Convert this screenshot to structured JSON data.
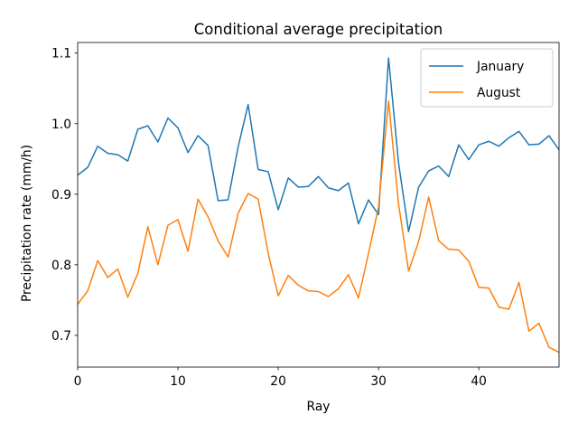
{
  "chart_data": {
    "type": "line",
    "title": "Conditional average precipitation",
    "xlabel": "Ray",
    "ylabel": "Precipitation rate (mm/h)",
    "xlim": [
      0,
      48
    ],
    "ylim": [
      0.655,
      1.115
    ],
    "xticks": [
      0,
      10,
      20,
      30,
      40
    ],
    "yticks": [
      0.7,
      0.8,
      0.9,
      1.0,
      1.1
    ],
    "ytick_labels": [
      "0.7",
      "0.8",
      "0.9",
      "1.0",
      "1.1"
    ],
    "legend_position": "upper right",
    "grid": false,
    "x": [
      0,
      1,
      2,
      3,
      4,
      5,
      6,
      7,
      8,
      9,
      10,
      11,
      12,
      13,
      14,
      15,
      16,
      17,
      18,
      19,
      20,
      21,
      22,
      23,
      24,
      25,
      26,
      27,
      28,
      29,
      30,
      31,
      32,
      33,
      34,
      35,
      36,
      37,
      38,
      39,
      40,
      41,
      42,
      43,
      44,
      45,
      46,
      47,
      48
    ],
    "series": [
      {
        "name": "January",
        "color": "#1f77b4",
        "values": [
          0.927,
          0.938,
          0.968,
          0.958,
          0.956,
          0.947,
          0.992,
          0.997,
          0.974,
          1.008,
          0.994,
          0.959,
          0.983,
          0.969,
          0.891,
          0.892,
          0.967,
          1.027,
          0.935,
          0.932,
          0.878,
          0.923,
          0.91,
          0.911,
          0.925,
          0.909,
          0.905,
          0.916,
          0.858,
          0.892,
          0.871,
          1.093,
          0.944,
          0.847,
          0.91,
          0.933,
          0.94,
          0.925,
          0.97,
          0.949,
          0.97,
          0.975,
          0.968,
          0.98,
          0.989,
          0.97,
          0.971,
          0.983,
          0.963
        ]
      },
      {
        "name": "August",
        "color": "#ff7f0e",
        "values": [
          0.744,
          0.763,
          0.806,
          0.782,
          0.794,
          0.754,
          0.788,
          0.854,
          0.8,
          0.856,
          0.864,
          0.819,
          0.893,
          0.868,
          0.834,
          0.811,
          0.873,
          0.901,
          0.893,
          0.816,
          0.756,
          0.785,
          0.771,
          0.763,
          0.762,
          0.755,
          0.766,
          0.786,
          0.753,
          0.816,
          0.882,
          1.032,
          0.886,
          0.791,
          0.833,
          0.896,
          0.834,
          0.822,
          0.821,
          0.805,
          0.768,
          0.767,
          0.74,
          0.737,
          0.775,
          0.706,
          0.717,
          0.683,
          0.676
        ]
      }
    ]
  }
}
